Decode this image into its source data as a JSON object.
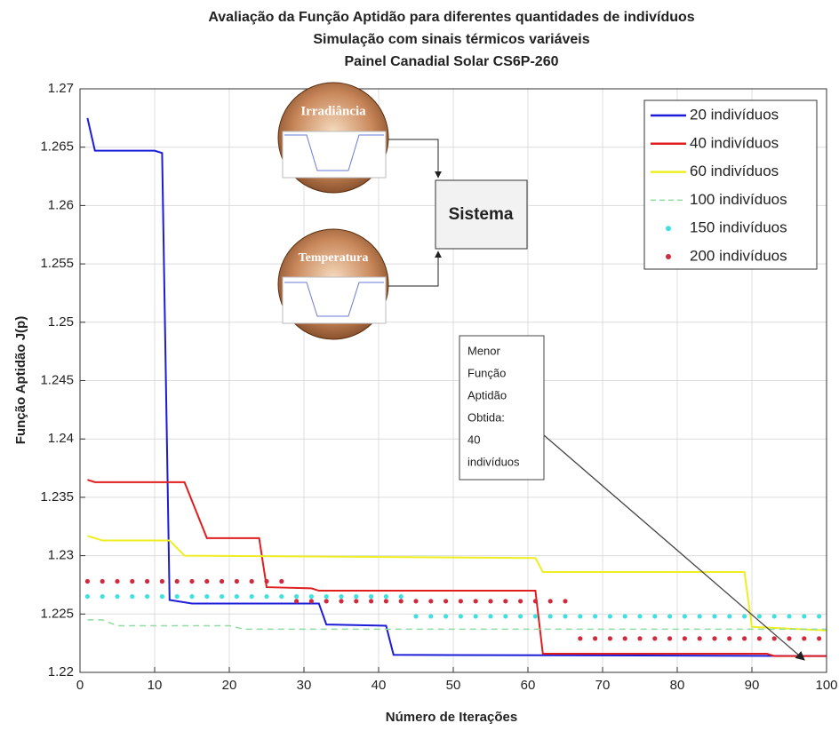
{
  "chart_data": {
    "type": "line",
    "title": [
      "Avaliação da Função Aptidão para diferentes quantidades de indivíduos",
      "Simulação com sinais térmicos variáveis",
      "Painel Canadial Solar CS6P-260"
    ],
    "x_label": "Número de Iterações",
    "y_label": "Função Aptidão J(p)",
    "xlim": [
      0,
      100
    ],
    "xticks": [
      0,
      10,
      20,
      30,
      40,
      50,
      60,
      70,
      80,
      90,
      100
    ],
    "ylim": [
      1.22,
      1.27
    ],
    "yticks": [
      1.22,
      1.225,
      1.23,
      1.235,
      1.24,
      1.245,
      1.25,
      1.255,
      1.26,
      1.265,
      1.27
    ],
    "grid": true,
    "legend": "upper right",
    "series": [
      {
        "name": "20 indivíduos",
        "color": "#1c1cd8",
        "style": "solid",
        "x": [
          1,
          2,
          10,
          11,
          12,
          14,
          15,
          32,
          33,
          41,
          42,
          100
        ],
        "values": [
          1.2675,
          1.2647,
          1.2647,
          1.2645,
          1.2262,
          1.226,
          1.2259,
          1.2259,
          1.2241,
          1.224,
          1.2215,
          1.2214
        ]
      },
      {
        "name": "40 indivíduos",
        "color": "#e01e1e",
        "style": "solid",
        "x": [
          1,
          2,
          14,
          17,
          24,
          25,
          31,
          32,
          61,
          62,
          92,
          93,
          100
        ],
        "values": [
          1.2365,
          1.2363,
          1.2363,
          1.2315,
          1.2315,
          1.2273,
          1.2272,
          1.227,
          1.227,
          1.2216,
          1.2216,
          1.2214,
          1.2214
        ]
      },
      {
        "name": "60 indivíduos",
        "color": "#eeee22",
        "style": "solid",
        "x": [
          1,
          3,
          12,
          14,
          61,
          62,
          89,
          90,
          100
        ],
        "values": [
          1.2317,
          1.2313,
          1.2313,
          1.23,
          1.2298,
          1.2286,
          1.2286,
          1.2239,
          1.2236
        ]
      },
      {
        "name": "100 indivíduos",
        "color": "#8fdca0",
        "style": "dashed",
        "x": [
          1,
          3,
          5,
          20,
          22,
          100
        ],
        "values": [
          1.2245,
          1.2245,
          1.224,
          1.224,
          1.2237,
          1.2237
        ]
      },
      {
        "name": "150 indivíduos",
        "color": "#3ee0e0",
        "style": "dots",
        "x": [
          1,
          3,
          5,
          7,
          9,
          11,
          13,
          15,
          17,
          19,
          21,
          23,
          25,
          27,
          29,
          31,
          33,
          35,
          37,
          39,
          41,
          43,
          45,
          47,
          49,
          51,
          53,
          55,
          57,
          59,
          61,
          63,
          65,
          67,
          69,
          71,
          73,
          75,
          77,
          79,
          81,
          83,
          85,
          87,
          89,
          91,
          93,
          95,
          97,
          99
        ],
        "values": [
          1.2265,
          1.2265,
          1.2265,
          1.2265,
          1.2265,
          1.2265,
          1.2265,
          1.2265,
          1.2265,
          1.2265,
          1.2265,
          1.2265,
          1.2265,
          1.2265,
          1.2265,
          1.2265,
          1.2265,
          1.2265,
          1.2265,
          1.2265,
          1.2265,
          1.2265,
          1.2248,
          1.2248,
          1.2248,
          1.2248,
          1.2248,
          1.2248,
          1.2248,
          1.2248,
          1.2248,
          1.2248,
          1.2248,
          1.2248,
          1.2248,
          1.2248,
          1.2248,
          1.2248,
          1.2248,
          1.2248,
          1.2248,
          1.2248,
          1.2248,
          1.2248,
          1.2248,
          1.2248,
          1.2248,
          1.2248,
          1.2248,
          1.2248
        ]
      },
      {
        "name": "200 indivíduos",
        "color": "#d02a3c",
        "style": "dots",
        "x": [
          1,
          3,
          5,
          7,
          9,
          11,
          13,
          15,
          17,
          19,
          21,
          23,
          25,
          27,
          29,
          31,
          33,
          35,
          37,
          39,
          41,
          43,
          45,
          47,
          49,
          51,
          53,
          55,
          57,
          59,
          61,
          63,
          65,
          67,
          69,
          71,
          73,
          75,
          77,
          79,
          81,
          83,
          85,
          87,
          89,
          91,
          93,
          95,
          97,
          99
        ],
        "values": [
          1.2278,
          1.2278,
          1.2278,
          1.2278,
          1.2278,
          1.2278,
          1.2278,
          1.2278,
          1.2278,
          1.2278,
          1.2278,
          1.2278,
          1.2278,
          1.2278,
          1.2261,
          1.2261,
          1.2261,
          1.2261,
          1.2261,
          1.2261,
          1.2261,
          1.2261,
          1.2261,
          1.2261,
          1.2261,
          1.2261,
          1.2261,
          1.2261,
          1.2261,
          1.2261,
          1.2261,
          1.2261,
          1.2261,
          1.2229,
          1.2229,
          1.2229,
          1.2229,
          1.2229,
          1.2229,
          1.2229,
          1.2229,
          1.2229,
          1.2229,
          1.2229,
          1.2229,
          1.2229,
          1.2229,
          1.2229,
          1.2229,
          1.2229
        ]
      }
    ],
    "annotation": {
      "lines": [
        "Menor",
        "Função",
        "Aptidão",
        "Obtida:",
        "40",
        "indivíduos"
      ]
    },
    "inset": {
      "inputs": [
        "Irradiância",
        "Temperatura"
      ],
      "block": "Sistema"
    }
  }
}
